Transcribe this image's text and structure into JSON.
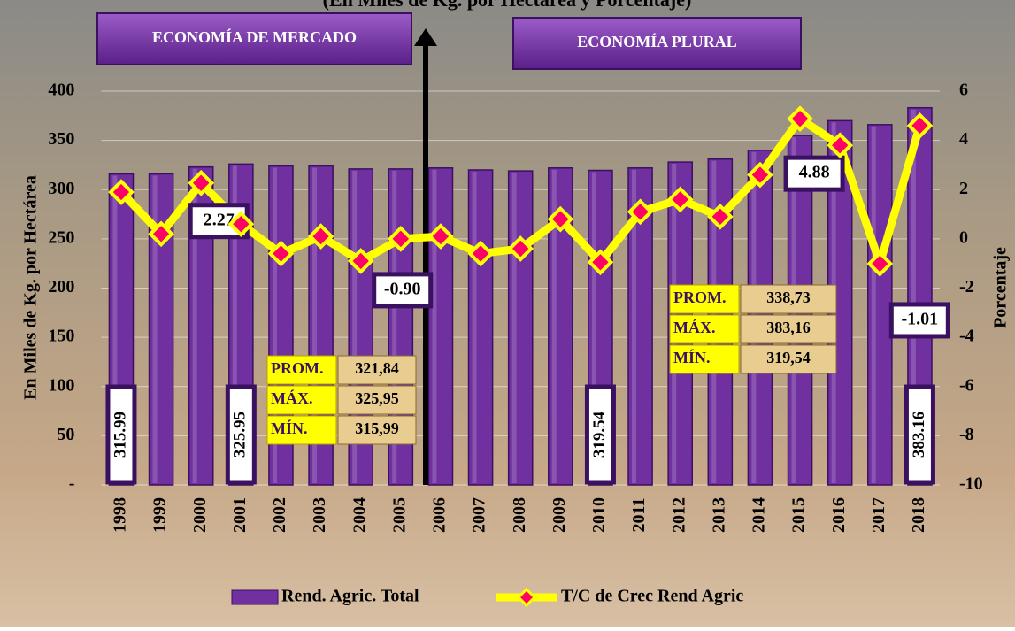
{
  "chart_data": {
    "type": "bar",
    "title": "(En Miles de Kg. por Hectárea y Porcentaje)",
    "ylabel": "En Miles de Kg. por Hectárea",
    "y2label": "Porcentaje",
    "categories": [
      "1998",
      "1999",
      "2000",
      "2001",
      "2002",
      "2003",
      "2004",
      "2005",
      "2006",
      "2007",
      "2008",
      "2009",
      "2010",
      "2011",
      "2012",
      "2013",
      "2014",
      "2015",
      "2016",
      "2017",
      "2018"
    ],
    "series": [
      {
        "name": "Rend. Agric. Total",
        "type": "bar",
        "color": "#7030a0",
        "values": [
          315.99,
          316,
          323,
          325.95,
          324,
          324,
          321,
          321,
          322,
          320,
          319,
          322,
          319.54,
          322,
          328,
          331,
          340,
          355,
          370,
          366,
          383.16
        ],
        "value_labels": [
          "315.99",
          null,
          null,
          "325.95",
          null,
          null,
          null,
          null,
          null,
          null,
          null,
          null,
          "319.54",
          null,
          null,
          null,
          null,
          null,
          null,
          null,
          "383.16"
        ]
      },
      {
        "name": "T/C de Crec Rend Agric",
        "type": "line",
        "axis": "y2",
        "color": "#ffff00",
        "marker_color": "#ff0066",
        "values": [
          1.9,
          0.2,
          2.27,
          0.6,
          -0.6,
          0.1,
          -0.9,
          0.0,
          0.1,
          -0.6,
          -0.4,
          0.8,
          -0.95,
          1.1,
          1.6,
          0.9,
          2.6,
          4.88,
          3.8,
          -1.01,
          4.6
        ],
        "value_labels": [
          null,
          null,
          "2.27",
          null,
          null,
          null,
          "-0.90",
          null,
          null,
          null,
          null,
          null,
          null,
          null,
          null,
          null,
          null,
          "4.88",
          null,
          "-1.01",
          null
        ]
      }
    ],
    "ylim": [
      0,
      400
    ],
    "yticks": [
      {
        "value": 0,
        "label": "-"
      },
      50,
      100,
      150,
      200,
      250,
      300,
      350,
      400
    ],
    "y2lim": [
      -10,
      6
    ],
    "y2ticks": [
      -10,
      -8,
      -6,
      -4,
      -2,
      0,
      2,
      4,
      6
    ],
    "grid": true,
    "legend": "bottom",
    "regions": [
      "ECONOMÍA DE MERCADO",
      "ECONOMÍA PLURAL"
    ],
    "stats": [
      [
        [
          "PROM.",
          "321,84"
        ],
        [
          "MÁX.",
          "325,95"
        ],
        [
          "MÍN.",
          "315,99"
        ]
      ],
      [
        [
          "PROM.",
          "338,73"
        ],
        [
          "MÁX.",
          "383,16"
        ],
        [
          "MÍN.",
          "319,54"
        ]
      ]
    ]
  }
}
